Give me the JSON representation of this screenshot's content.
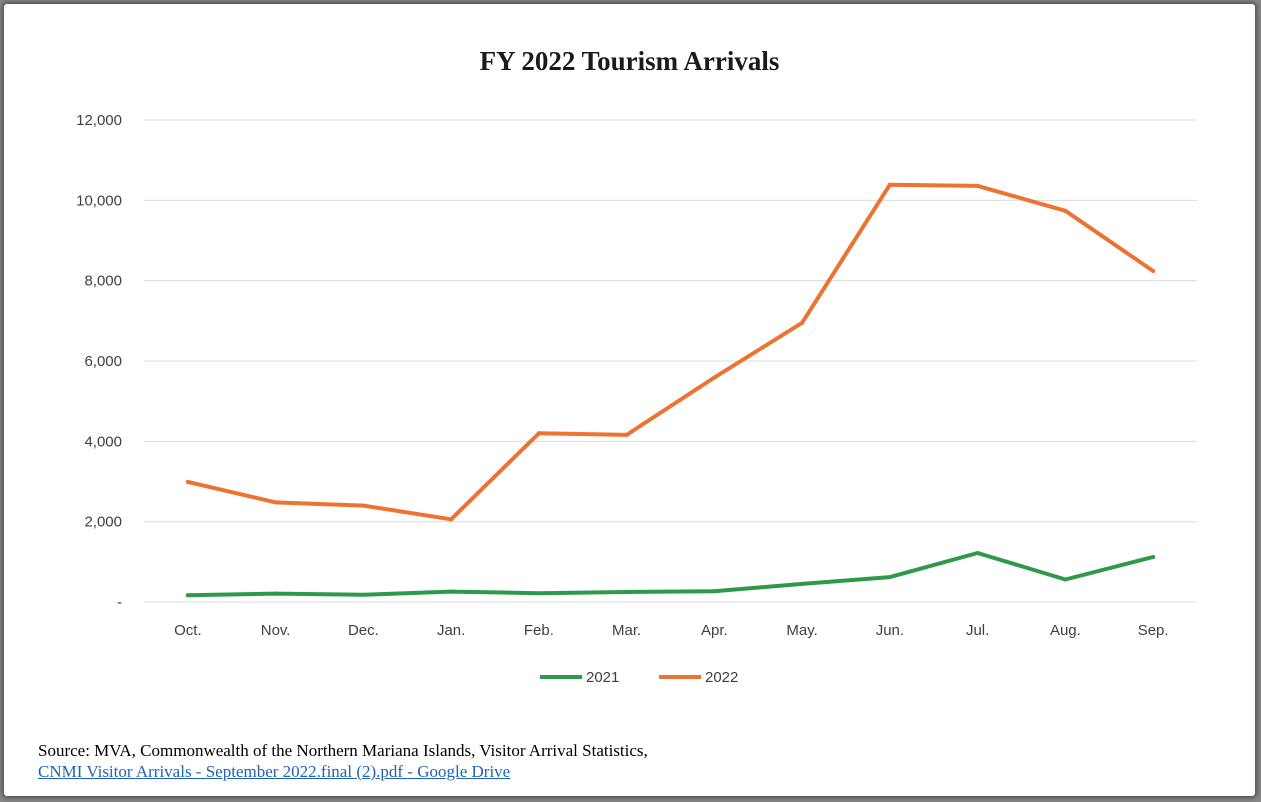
{
  "colors": {
    "series_2021": "#2e9a48",
    "series_2022": "#ec7332",
    "grid": "#dcdcdc"
  },
  "source": {
    "text": "Source: MVA, Commonwealth of the Northern Mariana Islands, Visitor Arrival Statistics,",
    "link": "CNMI Visitor Arrivals - September 2022.final (2).pdf - Google Drive"
  },
  "chart_data": {
    "type": "line",
    "title": "FY 2022 Tourism Arrivals",
    "xlabel": "",
    "ylabel": "",
    "categories": [
      "Oct.",
      "Nov.",
      "Dec.",
      "Jan.",
      "Feb.",
      "Mar.",
      "Apr.",
      "May.",
      "Jun.",
      "Jul.",
      "Aug.",
      "Sep."
    ],
    "ylim": [
      0,
      12000
    ],
    "yticks": [
      0,
      2000,
      4000,
      6000,
      8000,
      10000,
      12000
    ],
    "ytick_labels": [
      "-",
      "2,000",
      "4,000",
      "6,000",
      "8,000",
      "10,000",
      "12,000"
    ],
    "grid": true,
    "legend_position": "bottom",
    "series": [
      {
        "name": "2021",
        "color": "#2e9a48",
        "values": [
          170,
          210,
          180,
          260,
          220,
          250,
          270,
          450,
          620,
          1220,
          560,
          1120
        ]
      },
      {
        "name": "2022",
        "color": "#ec7332",
        "values": [
          2990,
          2480,
          2400,
          2060,
          4200,
          4160,
          5590,
          6950,
          10390,
          10360,
          9740,
          8240
        ]
      }
    ]
  }
}
